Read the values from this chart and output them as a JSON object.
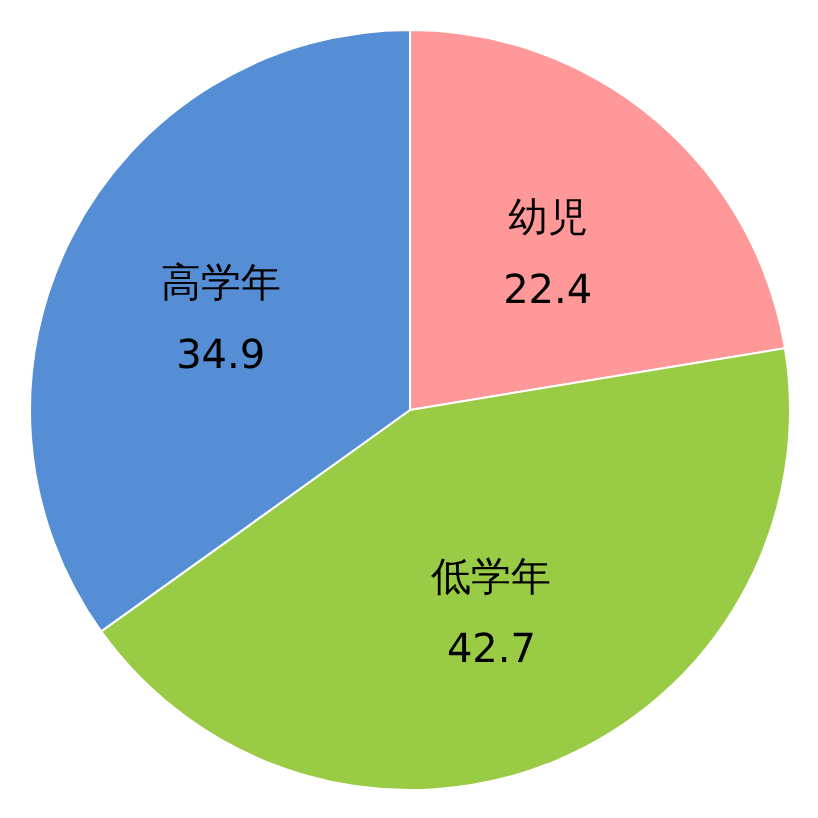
{
  "chart_data": {
    "type": "pie",
    "categories": [
      "幼児",
      "低学年",
      "高学年"
    ],
    "values": [
      22.4,
      42.7,
      34.9
    ],
    "colors": [
      "#ff9999",
      "#99cc44",
      "#558ed5"
    ],
    "data_labels": true
  }
}
